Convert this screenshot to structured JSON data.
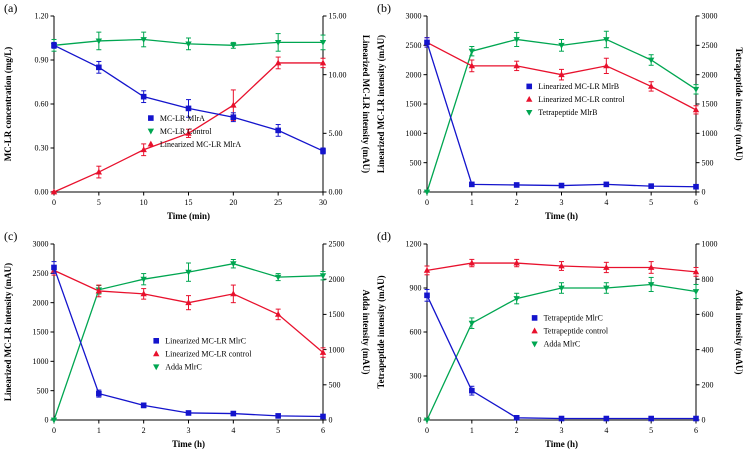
{
  "chart_data": [
    {
      "type": "line",
      "label": "(a)",
      "xlabel": "Time (min)",
      "ylabel_left": "MC-LR concentration (mg/L)",
      "ylabel_right": "Linearized MC-LR intensity (mAU)",
      "xlim": [
        0,
        30
      ],
      "xticks": [
        0,
        5,
        10,
        15,
        20,
        25,
        30
      ],
      "ylim_left": [
        0,
        1.2
      ],
      "ytick_vals_left": [
        0,
        0.3,
        0.6,
        0.9,
        1.2
      ],
      "ytick_labels_left": [
        "0.00",
        "0.30",
        "0.60",
        "0.90",
        "1.20"
      ],
      "ylim_right": [
        0,
        15
      ],
      "ytick_vals_right": [
        0,
        5,
        10,
        15
      ],
      "ytick_labels_right": [
        "0.00",
        "5.00",
        "10.00",
        "15.00"
      ],
      "x": [
        0,
        5,
        10,
        15,
        20,
        25,
        30
      ],
      "series": [
        {
          "name": "MC-LR MlrA",
          "axis": "left",
          "color": "#1414cc",
          "marker": "square",
          "values": [
            1.0,
            0.85,
            0.65,
            0.57,
            0.51,
            0.42,
            0.28
          ],
          "errors": [
            0.02,
            0.04,
            0.04,
            0.06,
            0.03,
            0.04,
            0.02
          ]
        },
        {
          "name": "MC-LR Control",
          "axis": "left",
          "color": "#00a651",
          "marker": "triangle-down",
          "values": [
            1.0,
            1.03,
            1.04,
            1.01,
            1.0,
            1.02,
            1.02
          ],
          "errors": [
            0.04,
            0.06,
            0.05,
            0.04,
            0.02,
            0.06,
            0.05
          ]
        },
        {
          "name": "Linearized MC-LR MlrA",
          "axis": "right",
          "color": "#e8112d",
          "marker": "triangle-up",
          "values": [
            0.0,
            1.7,
            3.6,
            5.0,
            7.4,
            11.0,
            11.0
          ],
          "errors": [
            0.05,
            0.5,
            0.5,
            0.35,
            1.3,
            0.5,
            0.4
          ]
        }
      ],
      "legend": {
        "fx": 0.36,
        "fy": 0.58
      }
    },
    {
      "type": "line",
      "label": "(b)",
      "xlabel": "Time (h)",
      "ylabel_left": "Linearized MC-LR intensity (mAU)",
      "ylabel_right": "Tetrapeptide intensity (mAU)",
      "xlim": [
        0,
        6
      ],
      "xticks": [
        0,
        1,
        2,
        3,
        4,
        5,
        6
      ],
      "ylim_left": [
        0,
        3000
      ],
      "ytick_vals_left": [
        0,
        500,
        1000,
        1500,
        2000,
        2500,
        3000
      ],
      "ytick_labels_left": [
        "0",
        "500",
        "1000",
        "1500",
        "2000",
        "2500",
        "3000"
      ],
      "ylim_right": [
        0,
        3000
      ],
      "ytick_vals_right": [
        0,
        500,
        1000,
        1500,
        2000,
        2500,
        3000
      ],
      "ytick_labels_right": [
        "0",
        "500",
        "1000",
        "1500",
        "2000",
        "2500",
        "3000"
      ],
      "x": [
        0,
        1,
        2,
        3,
        4,
        5,
        6
      ],
      "series": [
        {
          "name": "Linearized MC-LR MlrB",
          "axis": "left",
          "color": "#1414cc",
          "marker": "square",
          "values": [
            2550,
            130,
            120,
            110,
            130,
            100,
            90
          ],
          "errors": [
            80,
            30,
            20,
            20,
            30,
            20,
            20
          ]
        },
        {
          "name": "Linearized MC-LR control",
          "axis": "left",
          "color": "#e8112d",
          "marker": "triangle-up",
          "values": [
            2550,
            2150,
            2150,
            2000,
            2150,
            1800,
            1400
          ],
          "errors": [
            80,
            100,
            80,
            90,
            130,
            80,
            70
          ]
        },
        {
          "name": "Tetrapeptide MlrB",
          "axis": "right",
          "color": "#00a651",
          "marker": "triangle-down",
          "values": [
            0,
            2400,
            2600,
            2500,
            2600,
            2250,
            1750
          ],
          "errors": [
            10,
            80,
            120,
            100,
            140,
            90,
            80
          ]
        }
      ],
      "legend": {
        "fx": 0.38,
        "fy": 0.4
      }
    },
    {
      "type": "line",
      "label": "(c)",
      "xlabel": "Time (h)",
      "ylabel_left": "Linearized MC-LR intensity (mAU)",
      "ylabel_right": "Adda intensity (mAU)",
      "xlim": [
        0,
        6
      ],
      "xticks": [
        0,
        1,
        2,
        3,
        4,
        5,
        6
      ],
      "ylim_left": [
        0,
        3000
      ],
      "ytick_vals_left": [
        0,
        500,
        1000,
        1500,
        2000,
        2500,
        3000
      ],
      "ytick_labels_left": [
        "0",
        "500",
        "1000",
        "1500",
        "2000",
        "2500",
        "3000"
      ],
      "ylim_right": [
        0,
        2500
      ],
      "ytick_vals_right": [
        0,
        500,
        1000,
        1500,
        2000,
        2500
      ],
      "ytick_labels_right": [
        "0",
        "500",
        "1000",
        "1500",
        "2000",
        "2500"
      ],
      "x": [
        0,
        1,
        2,
        3,
        4,
        5,
        6
      ],
      "series": [
        {
          "name": "Linearized MC-LR MlrC",
          "axis": "left",
          "color": "#1414cc",
          "marker": "square",
          "values": [
            2600,
            450,
            250,
            120,
            110,
            70,
            60
          ],
          "errors": [
            100,
            60,
            40,
            30,
            30,
            20,
            20
          ]
        },
        {
          "name": "Linearized MC-LR control",
          "axis": "left",
          "color": "#e8112d",
          "marker": "triangle-up",
          "values": [
            2550,
            2200,
            2150,
            2000,
            2150,
            1800,
            1150
          ],
          "errors": [
            80,
            100,
            90,
            120,
            150,
            90,
            80
          ]
        },
        {
          "name": "Adda MlrC",
          "axis": "right",
          "color": "#00a651",
          "marker": "triangle-down",
          "values": [
            0,
            1850,
            2000,
            2100,
            2220,
            2030,
            2050
          ],
          "errors": [
            10,
            60,
            80,
            130,
            60,
            50,
            60
          ]
        }
      ],
      "legend": {
        "fx": 0.38,
        "fy": 0.55
      }
    },
    {
      "type": "line",
      "label": "(d)",
      "xlabel": "Time (h)",
      "ylabel_left": "Tetrapeptide intensity (mAU)",
      "ylabel_right": "Adda intensity (mAU)",
      "xlim": [
        0,
        6
      ],
      "xticks": [
        0,
        1,
        2,
        3,
        4,
        5,
        6
      ],
      "ylim_left": [
        0,
        1200
      ],
      "ytick_vals_left": [
        0,
        300,
        600,
        900,
        1200
      ],
      "ytick_labels_left": [
        "0",
        "300",
        "600",
        "900",
        "1200"
      ],
      "ylim_right": [
        0,
        1000
      ],
      "ytick_vals_right": [
        0,
        200,
        400,
        600,
        800,
        1000
      ],
      "ytick_labels_right": [
        "0",
        "200",
        "400",
        "600",
        "800",
        "1000"
      ],
      "x": [
        0,
        1,
        2,
        3,
        4,
        5,
        6
      ],
      "series": [
        {
          "name": "Tetrapeptide MlrC",
          "axis": "left",
          "color": "#1414cc",
          "marker": "square",
          "values": [
            850,
            200,
            15,
            10,
            10,
            10,
            10
          ],
          "errors": [
            40,
            30,
            10,
            5,
            5,
            5,
            5
          ]
        },
        {
          "name": "Tetrapeptide control",
          "axis": "left",
          "color": "#e8112d",
          "marker": "triangle-up",
          "values": [
            1020,
            1070,
            1070,
            1050,
            1040,
            1040,
            1010
          ],
          "errors": [
            30,
            25,
            25,
            30,
            35,
            40,
            30
          ]
        },
        {
          "name": "Adda MlrC",
          "axis": "right",
          "color": "#00a651",
          "marker": "triangle-down",
          "values": [
            0,
            550,
            690,
            750,
            750,
            770,
            730
          ],
          "errors": [
            5,
            30,
            30,
            30,
            30,
            40,
            40
          ]
        }
      ],
      "legend": {
        "fx": 0.4,
        "fy": 0.42
      }
    }
  ]
}
